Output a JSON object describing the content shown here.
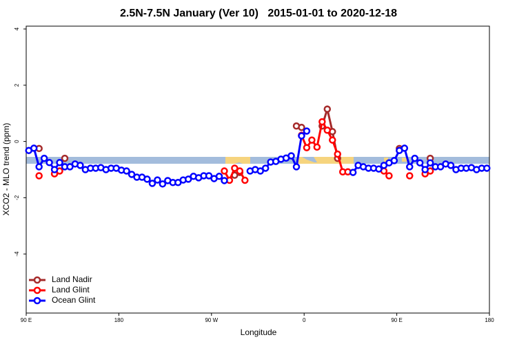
{
  "chart_data": {
    "type": "line",
    "title": "2.5N-7.5N January (Ver 10)   2015-01-01 to 2020-12-18",
    "x_label": "Longitude",
    "y_label": "XCO2 - MLO trend (ppm)",
    "xlim": [
      90,
      540
    ],
    "ylim": [
      -6.1,
      4.1
    ],
    "xticks": [
      {
        "value": 90,
        "label": "90 E"
      },
      {
        "value": 180,
        "label": "180"
      },
      {
        "value": 270,
        "label": "90 W"
      },
      {
        "value": 360,
        "label": "0"
      },
      {
        "value": 450,
        "label": "90 E"
      },
      {
        "value": 540,
        "label": "180"
      }
    ],
    "yticks": [
      -4,
      -2,
      0,
      2,
      4
    ],
    "legend": "bottomleft",
    "series": [
      {
        "name": "Land Nadir",
        "color": "#a52a2a",
        "x": [
          102.5,
          107.5,
          127.5,
          132.5,
          292.5,
          297.5,
          302.5,
          352.5,
          357.5,
          362.5,
          377.5,
          382.5,
          387.5,
          392.5,
          397.5,
          452.5,
          457.5,
          482.5
        ],
        "values": [
          -0.25,
          null,
          -0.6,
          null,
          -1.2,
          -1.1,
          null,
          0.55,
          0.5,
          null,
          0.55,
          1.15,
          0.35,
          -0.6,
          null,
          -0.25,
          null,
          -0.6
        ]
      },
      {
        "name": "Land Glint",
        "color": "#ff0000",
        "x": [
          102.5,
          107.5,
          117.5,
          122.5,
          127.5,
          282.5,
          287.5,
          292.5,
          297.5,
          302.5,
          307.5,
          357.5,
          362.5,
          367.5,
          372.5,
          377.5,
          382.5,
          387.5,
          392.5,
          397.5,
          402.5,
          407.5,
          437.5,
          442.5,
          447.5,
          462.5,
          467.5,
          477.5,
          482.5
        ],
        "values": [
          -1.22,
          null,
          -1.15,
          -1.05,
          null,
          -1.05,
          -1.38,
          -0.95,
          -1.05,
          -1.38,
          null,
          0.22,
          -0.22,
          0.05,
          -0.2,
          0.7,
          0.4,
          0.05,
          -0.45,
          -1.08,
          -1.08,
          null,
          -1.05,
          -1.22,
          null,
          -1.22,
          null,
          -1.15,
          -1.05
        ]
      },
      {
        "name": "Ocean Glint",
        "color": "#0000ff",
        "x": [
          92.5,
          97.5,
          102.5,
          107.5,
          112.5,
          117.5,
          122.5,
          127.5,
          132.5,
          137.5,
          142.5,
          147.5,
          152.5,
          157.5,
          162.5,
          167.5,
          172.5,
          177.5,
          182.5,
          187.5,
          192.5,
          197.5,
          202.5,
          207.5,
          212.5,
          217.5,
          222.5,
          227.5,
          232.5,
          237.5,
          242.5,
          247.5,
          252.5,
          257.5,
          262.5,
          267.5,
          272.5,
          277.5,
          282.5,
          287.5,
          292.5,
          297.5,
          302.5,
          307.5,
          312.5,
          317.5,
          322.5,
          327.5,
          332.5,
          337.5,
          342.5,
          347.5,
          352.5,
          357.5,
          362.5,
          367.5,
          372.5,
          377.5,
          382.5,
          387.5,
          392.5,
          397.5,
          402.5,
          407.5,
          412.5,
          417.5,
          422.5,
          427.5,
          432.5,
          437.5,
          442.5,
          447.5,
          452.5,
          457.5,
          462.5,
          467.5,
          472.5,
          477.5,
          482.5,
          487.5,
          492.5,
          497.5,
          502.5,
          507.5,
          512.5,
          517.5,
          522.5,
          527.5,
          532.5,
          537.5
        ],
        "values": [
          -0.32,
          -0.24,
          -0.9,
          -0.6,
          -0.75,
          -1.0,
          -0.75,
          -0.9,
          -0.9,
          -0.8,
          -0.85,
          -1.0,
          -0.95,
          -0.95,
          -0.93,
          -1.0,
          -0.95,
          -0.95,
          -1.02,
          -1.05,
          -1.17,
          -1.27,
          -1.27,
          -1.34,
          -1.49,
          -1.37,
          -1.51,
          -1.39,
          -1.46,
          -1.46,
          -1.37,
          -1.34,
          -1.24,
          -1.29,
          -1.22,
          -1.22,
          -1.32,
          -1.24,
          -1.39,
          null,
          null,
          null,
          null,
          -1.05,
          -1.0,
          -1.05,
          -0.95,
          -0.73,
          -0.71,
          -0.63,
          -0.59,
          -0.51,
          -0.9,
          0.2,
          0.37,
          null,
          null,
          null,
          null,
          null,
          null,
          null,
          null,
          -1.1,
          -0.85,
          -0.9,
          -0.95,
          -0.95,
          -0.98,
          -0.85,
          -0.76,
          -0.68,
          -0.32,
          -0.24,
          -0.9,
          -0.6,
          -0.76,
          -1.0,
          -0.76,
          -0.9,
          -0.9,
          -0.8,
          -0.85,
          -1.0,
          -0.95,
          -0.95,
          -0.93,
          -1.0,
          -0.95,
          -0.95
        ]
      }
    ]
  }
}
